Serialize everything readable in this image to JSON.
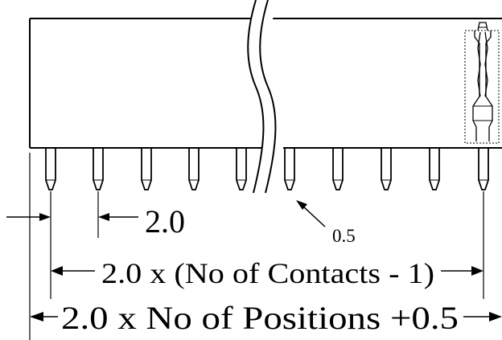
{
  "dimensions": {
    "pitch": "2.0",
    "tip": "0.5",
    "contacts_span": "2.0 x (No of Contacts - 1)",
    "overall_length": "2.0 x No of Positions +0.5"
  }
}
